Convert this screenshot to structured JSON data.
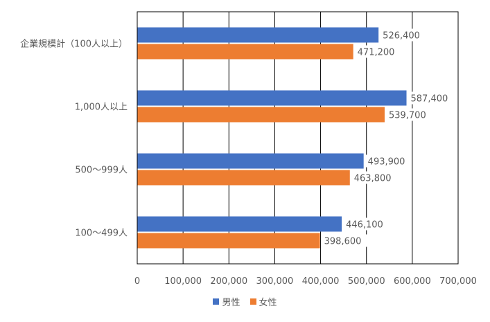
{
  "chart_data": {
    "type": "bar",
    "orientation": "horizontal",
    "categories": [
      "企業規模計（100人以上）",
      "1,000人以上",
      "500～999人",
      "100～499人"
    ],
    "series": [
      {
        "name": "男性",
        "color": "#4472C4",
        "values": [
          526400,
          587400,
          493900,
          446100
        ],
        "labels": [
          "526,400",
          "587,400",
          "493,900",
          "446,100"
        ]
      },
      {
        "name": "女性",
        "color": "#ED7D31",
        "values": [
          471200,
          539700,
          463800,
          398600
        ],
        "labels": [
          "471,200",
          "539,700",
          "463,800",
          "398,600"
        ]
      }
    ],
    "xlim": [
      0,
      700000
    ],
    "xticks": [
      0,
      100000,
      200000,
      300000,
      400000,
      500000,
      600000,
      700000
    ],
    "xtick_labels": [
      "0",
      "100,000",
      "200,000",
      "300,000",
      "400,000",
      "500,000",
      "600,000",
      "700,000"
    ],
    "grid": true,
    "legend_position": "bottom"
  }
}
